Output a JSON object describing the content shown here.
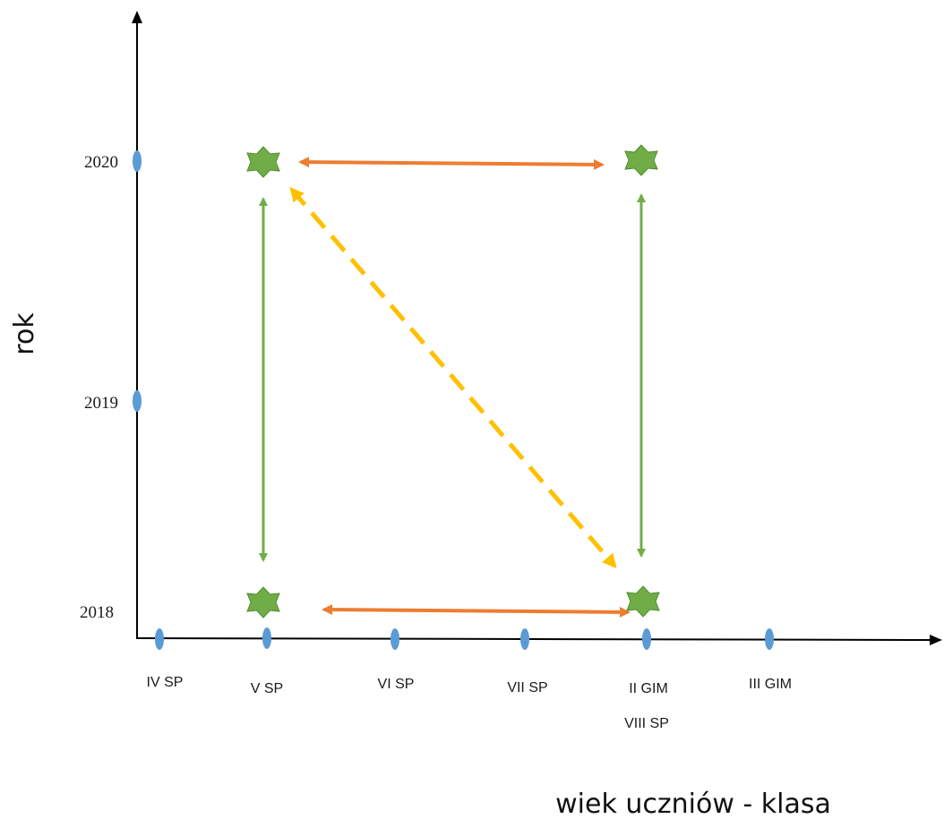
{
  "axes": {
    "y_label": "rok",
    "x_label": "wiek uczniów - klasa",
    "y_ticks": [
      "2018",
      "2019",
      "2020"
    ],
    "x_ticks": [
      "IV SP",
      "V SP",
      "VI SP",
      "VII SP",
      "II GIM",
      "III GIM"
    ],
    "x_tick_sublabel": "VIII SP"
  },
  "colors": {
    "axis": "#000000",
    "tick_marker": "#5b9bd5",
    "star": "#70ad47",
    "star_stroke": "#4e8a2e",
    "arrow_vertical": "#70ad47",
    "arrow_horizontal": "#ed7d31",
    "arrow_diagonal": "#ffc000"
  },
  "points": [
    {
      "class": "V SP",
      "year": "2020"
    },
    {
      "class": "II GIM",
      "year": "2020"
    },
    {
      "class": "V SP",
      "year": "2018"
    },
    {
      "class": "II GIM",
      "year": "2018"
    }
  ],
  "arrows": [
    {
      "kind": "horizontal",
      "from": {
        "class": "V SP",
        "year": "2020"
      },
      "to": {
        "class": "II GIM",
        "year": "2020"
      },
      "style": "solid"
    },
    {
      "kind": "horizontal",
      "from": {
        "class": "V SP",
        "year": "2018"
      },
      "to": {
        "class": "II GIM",
        "year": "2018"
      },
      "style": "solid"
    },
    {
      "kind": "vertical",
      "from": {
        "class": "V SP",
        "year": "2018"
      },
      "to": {
        "class": "V SP",
        "year": "2020"
      },
      "style": "solid"
    },
    {
      "kind": "vertical",
      "from": {
        "class": "II GIM",
        "year": "2018"
      },
      "to": {
        "class": "II GIM",
        "year": "2020"
      },
      "style": "solid"
    },
    {
      "kind": "diagonal",
      "from": {
        "class": "V SP",
        "year": "2020"
      },
      "to": {
        "class": "II GIM",
        "year": "2018"
      },
      "style": "dashed"
    }
  ]
}
